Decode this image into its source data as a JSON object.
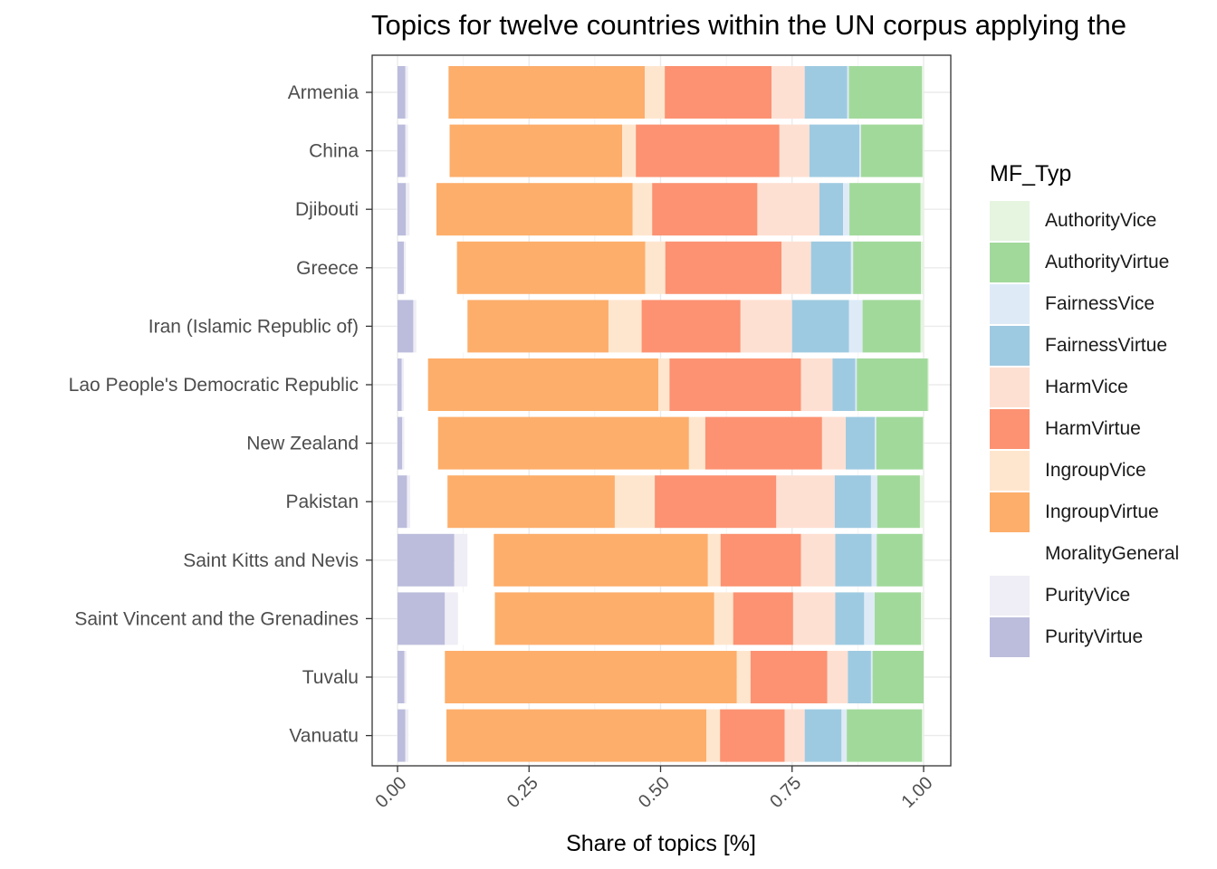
{
  "chart_data": {
    "type": "bar",
    "orientation": "horizontal",
    "stacked": true,
    "title": "Topics for twelve countries within the UN corpus applying the",
    "xlabel": "Share of topics [%]",
    "ylabel": "",
    "xlim": [
      0,
      1
    ],
    "xticks": [
      "0.00",
      "0.25",
      "0.50",
      "0.75",
      "1.00"
    ],
    "grid": true,
    "legend": {
      "title": "MF_Typ",
      "position": "right"
    },
    "categories": [
      "Armenia",
      "China",
      "Djibouti",
      "Greece",
      "Iran (Islamic Republic of)",
      "Lao People's Democratic Republic",
      "New Zealand",
      "Pakistan",
      "Saint Kitts and Nevis",
      "Saint Vincent and the Grenadines",
      "Tuvalu",
      "Vanuatu"
    ],
    "series": [
      {
        "name": "PurityVirtue",
        "color": "#BCBDDC",
        "values": [
          0.015,
          0.015,
          0.016,
          0.012,
          0.03,
          0.008,
          0.009,
          0.018,
          0.108,
          0.09,
          0.013,
          0.015
        ]
      },
      {
        "name": "PurityVice",
        "color": "#EFEDF5",
        "values": [
          0.005,
          0.005,
          0.007,
          0.004,
          0.006,
          0.004,
          0.004,
          0.006,
          0.025,
          0.025,
          0.004,
          0.006
        ]
      },
      {
        "name": "MoralityGeneral",
        "color": "#FFFFFF",
        "values": [
          0.077,
          0.079,
          0.051,
          0.097,
          0.097,
          0.046,
          0.064,
          0.071,
          0.05,
          0.07,
          0.073,
          0.072
        ]
      },
      {
        "name": "IngroupVirtue",
        "color": "#FDAE6B",
        "values": [
          0.373,
          0.328,
          0.373,
          0.358,
          0.268,
          0.438,
          0.477,
          0.318,
          0.407,
          0.417,
          0.555,
          0.494
        ]
      },
      {
        "name": "IngroupVice",
        "color": "#FEE6CE",
        "values": [
          0.038,
          0.026,
          0.037,
          0.038,
          0.063,
          0.021,
          0.031,
          0.076,
          0.024,
          0.036,
          0.026,
          0.026
        ]
      },
      {
        "name": "HarmVirtue",
        "color": "#FC9272",
        "values": [
          0.203,
          0.273,
          0.2,
          0.221,
          0.188,
          0.25,
          0.222,
          0.231,
          0.153,
          0.114,
          0.146,
          0.123
        ]
      },
      {
        "name": "HarmVice",
        "color": "#FEE0D2",
        "values": [
          0.063,
          0.057,
          0.118,
          0.056,
          0.098,
          0.06,
          0.045,
          0.111,
          0.065,
          0.08,
          0.039,
          0.038
        ]
      },
      {
        "name": "FairnessVirtue",
        "color": "#9ECAE1",
        "values": [
          0.081,
          0.095,
          0.045,
          0.076,
          0.108,
          0.043,
          0.055,
          0.069,
          0.069,
          0.055,
          0.044,
          0.07
        ]
      },
      {
        "name": "FairnessVice",
        "color": "#DEEBF7",
        "values": [
          0.003,
          0.003,
          0.012,
          0.004,
          0.026,
          0.003,
          0.003,
          0.012,
          0.01,
          0.02,
          0.003,
          0.01
        ]
      },
      {
        "name": "AuthorityVirtue",
        "color": "#A1D99B",
        "values": [
          0.139,
          0.117,
          0.135,
          0.129,
          0.11,
          0.135,
          0.089,
          0.081,
          0.087,
          0.088,
          0.097,
          0.143
        ]
      },
      {
        "name": "AuthorityVice",
        "color": "#E5F5E0",
        "values": [
          0.003,
          0.002,
          0.006,
          0.005,
          0.006,
          0.002,
          0.001,
          0.007,
          0.002,
          0.005,
          0.0,
          0.003
        ]
      }
    ],
    "legend_order": [
      "AuthorityVice",
      "AuthorityVirtue",
      "FairnessVice",
      "FairnessVirtue",
      "HarmVice",
      "HarmVirtue",
      "IngroupVice",
      "IngroupVirtue",
      "MoralityGeneral",
      "PurityVice",
      "PurityVirtue"
    ]
  }
}
